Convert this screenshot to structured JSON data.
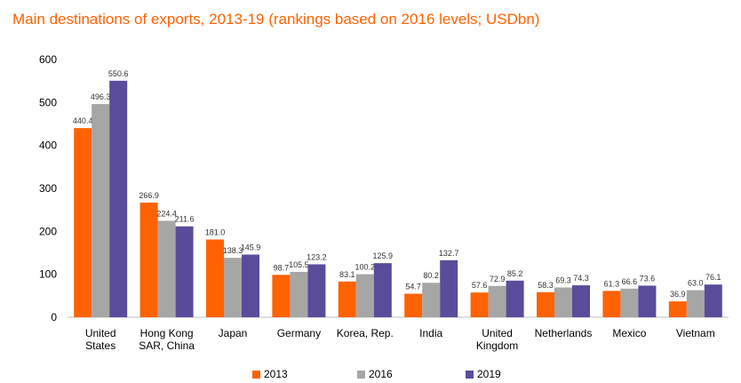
{
  "title": "Main destinations of exports, 2013-19 (rankings based on 2016 levels; USDbn)",
  "chart_data": {
    "type": "bar",
    "title": "Main destinations of exports, 2013-19 (rankings based on 2016 levels; USDbn)",
    "categories": [
      [
        "United",
        "States"
      ],
      [
        "Hong Kong",
        "SAR, China"
      ],
      [
        "Japan"
      ],
      [
        "Germany"
      ],
      [
        "Korea, Rep."
      ],
      [
        "India"
      ],
      [
        "United",
        "Kingdom"
      ],
      [
        "Netherlands"
      ],
      [
        "Mexico"
      ],
      [
        "Vietnam"
      ]
    ],
    "series": [
      {
        "name": "2013",
        "color": "#ff6200",
        "values": [
          440.4,
          266.9,
          181.0,
          98.7,
          83.1,
          54.7,
          57.6,
          58.3,
          61.3,
          36.9
        ],
        "labels": [
          "440.4",
          "266.9",
          "181.0",
          "98.7",
          "83.1",
          "54.7",
          "57.6",
          "58.3",
          "61.3",
          "36.9"
        ]
      },
      {
        "name": "2016",
        "color": "#a6a6a6",
        "values": [
          496.3,
          224.4,
          138.3,
          105.5,
          100.2,
          80.2,
          72.9,
          69.3,
          66.6,
          63.0
        ],
        "labels": [
          "496.3",
          "224.4",
          "138.3",
          "105.5",
          "100.2",
          "80.2",
          "72.9",
          "69.3",
          "66.6",
          "63.0"
        ]
      },
      {
        "name": "2019",
        "color": "#5b4b9b",
        "values": [
          550.6,
          211.6,
          145.9,
          123.2,
          125.9,
          132.7,
          85.2,
          74.3,
          73.6,
          76.1
        ],
        "labels": [
          "550.6",
          "211.6",
          "145.9",
          "123.2",
          "125.9",
          "132.7",
          "85.2",
          "74.3",
          "73.6",
          "76.1"
        ]
      }
    ],
    "yticks": [
      "0",
      "100",
      "200",
      "300",
      "400",
      "500",
      "600"
    ],
    "ylim": [
      0,
      600
    ],
    "grid": false,
    "legend_position": "bottom"
  }
}
